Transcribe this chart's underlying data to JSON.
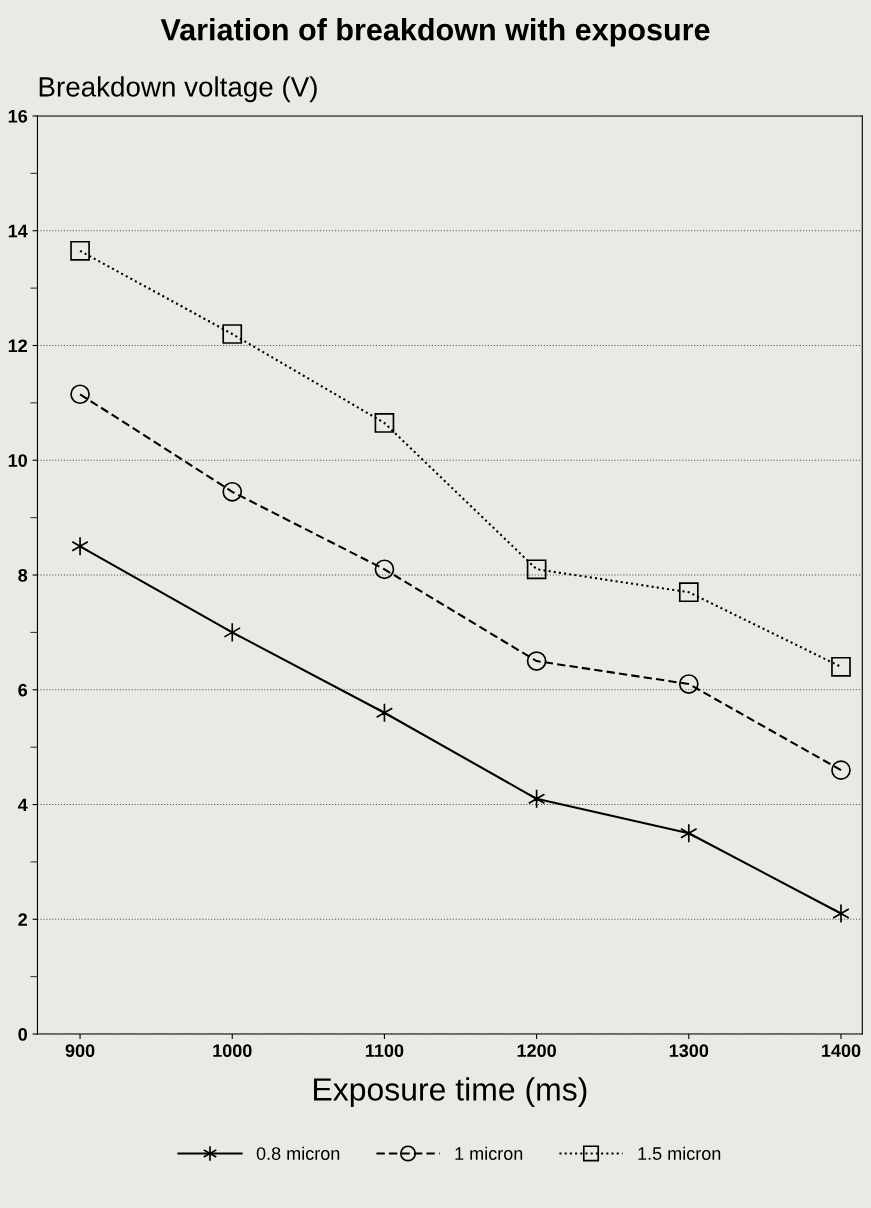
{
  "chart_data": {
    "type": "line",
    "title": "Variation of breakdown with exposure",
    "ylabel": "Breakdown voltage (V)",
    "xlabel": "Exposure time (ms)",
    "x": [
      900,
      1000,
      1100,
      1200,
      1300,
      1400
    ],
    "series": [
      {
        "name": "0.8 micron",
        "color": "#000000",
        "marker": "cross",
        "line_style": "solid",
        "values": [
          8.5,
          7.0,
          5.6,
          4.1,
          3.5,
          2.1
        ]
      },
      {
        "name": "1 micron",
        "color": "#000000",
        "marker": "circle",
        "line_style": "dashed",
        "values": [
          11.15,
          9.45,
          8.1,
          6.5,
          6.1,
          4.6
        ]
      },
      {
        "name": "1.5 micron",
        "color": "#000000",
        "marker": "square",
        "line_style": "dotted",
        "values": [
          13.65,
          12.2,
          10.65,
          8.1,
          7.7,
          6.4
        ]
      }
    ],
    "xlim": [
      872,
      1414
    ],
    "xticks": [
      900,
      1000,
      1100,
      1200,
      1300,
      1400
    ],
    "ylim": [
      0,
      16
    ],
    "yticks": [
      0,
      2,
      4,
      6,
      8,
      10,
      12,
      14,
      16
    ],
    "grid": "y",
    "legend": "bottom"
  }
}
